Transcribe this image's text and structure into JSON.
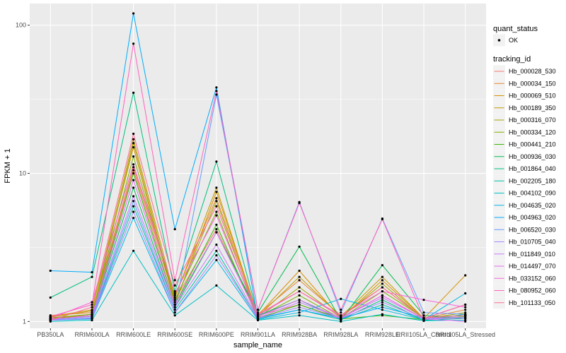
{
  "chart_data": {
    "type": "line",
    "xlabel": "sample_name",
    "ylabel": "FPKM + 1",
    "y_scale": "log10",
    "ylim": [
      0.9,
      140
    ],
    "y_ticks": [
      1,
      10,
      100
    ],
    "y_tick_labels": [
      "1",
      "10",
      "100"
    ],
    "grid": true,
    "legend_position": "right",
    "categories": [
      "PB350LA",
      "RRIM600LA",
      "RRIM600LE",
      "RRIM600SE",
      "RRIM600PE",
      "RRIM901LA",
      "RRIM928BA",
      "RRIM928LA",
      "RRIM928LE",
      "RRII105LA_Control",
      "RRII105LA_Stressed"
    ],
    "quant_legend": {
      "title": "quant_status",
      "entries": [
        "OK"
      ]
    },
    "series_legend_title": "tracking_id",
    "series": [
      {
        "name": "Hb_000028_530",
        "color": "#F8766D",
        "values": [
          1.05,
          1.12,
          10.5,
          1.4,
          4.2,
          1.1,
          1.3,
          1.05,
          1.5,
          1.05,
          1.1
        ]
      },
      {
        "name": "Hb_000034_150",
        "color": "#EA8331",
        "values": [
          1.1,
          1.15,
          11.0,
          1.5,
          6.8,
          1.12,
          1.9,
          1.1,
          1.7,
          1.05,
          1.2
        ]
      },
      {
        "name": "Hb_000069_510",
        "color": "#D89000",
        "values": [
          1.08,
          1.2,
          15.0,
          1.3,
          7.5,
          1.1,
          2.2,
          1.05,
          1.9,
          1.05,
          2.05
        ]
      },
      {
        "name": "Hb_000189_350",
        "color": "#C09B00",
        "values": [
          1.07,
          1.18,
          17.0,
          1.45,
          8.0,
          1.08,
          2.0,
          1.08,
          2.0,
          1.05,
          1.3
        ]
      },
      {
        "name": "Hb_000316_070",
        "color": "#A3A500",
        "values": [
          1.05,
          1.1,
          16.0,
          1.35,
          6.5,
          1.06,
          1.7,
          1.06,
          1.8,
          1.04,
          1.15
        ]
      },
      {
        "name": "Hb_000334_120",
        "color": "#7CAE00",
        "values": [
          1.06,
          1.12,
          13.0,
          1.4,
          5.5,
          1.07,
          1.5,
          1.05,
          1.6,
          1.06,
          1.1
        ]
      },
      {
        "name": "Hb_000441_210",
        "color": "#39B600",
        "values": [
          1.04,
          1.08,
          10.0,
          1.3,
          4.5,
          1.05,
          1.3,
          1.04,
          1.1,
          1.03,
          1.08
        ]
      },
      {
        "name": "Hb_000936_030",
        "color": "#00BB4E",
        "values": [
          1.03,
          1.1,
          8.0,
          1.25,
          4.0,
          1.15,
          3.2,
          1.02,
          2.4,
          1.1,
          1.05
        ]
      },
      {
        "name": "Hb_001864_040",
        "color": "#00BF7D",
        "values": [
          1.45,
          2.0,
          35.0,
          1.6,
          12.0,
          1.1,
          1.4,
          1.03,
          1.4,
          1.02,
          1.12
        ]
      },
      {
        "name": "Hb_002205_180",
        "color": "#00C1A3",
        "values": [
          1.02,
          1.05,
          6.0,
          1.2,
          3.0,
          1.04,
          1.2,
          1.03,
          1.3,
          1.02,
          1.05
        ]
      },
      {
        "name": "Hb_004102_090",
        "color": "#00BFC4",
        "values": [
          1.0,
          1.02,
          3.0,
          1.1,
          1.75,
          1.02,
          1.1,
          1.0,
          1.12,
          1.01,
          1.02
        ]
      },
      {
        "name": "Hb_004635_020",
        "color": "#00B8E5",
        "values": [
          1.02,
          1.04,
          5.0,
          1.15,
          2.6,
          1.03,
          1.15,
          1.42,
          1.2,
          1.03,
          1.55
        ]
      },
      {
        "name": "Hb_004963_020",
        "color": "#00ACFC",
        "values": [
          2.2,
          2.15,
          120.0,
          4.2,
          38.0,
          1.05,
          1.2,
          1.05,
          1.25,
          1.06,
          1.1
        ]
      },
      {
        "name": "Hb_006520_030",
        "color": "#619CFF",
        "values": [
          1.03,
          1.06,
          6.5,
          1.2,
          34.0,
          1.2,
          6.4,
          1.15,
          4.95,
          1.15,
          1.12
        ]
      },
      {
        "name": "Hb_010705_040",
        "color": "#A58AFF",
        "values": [
          1.02,
          1.05,
          5.5,
          1.15,
          2.8,
          1.05,
          1.25,
          1.05,
          1.35,
          1.04,
          1.05
        ]
      },
      {
        "name": "Hb_011849_010",
        "color": "#C77CFF",
        "values": [
          1.04,
          1.08,
          7.0,
          1.25,
          3.3,
          1.06,
          1.35,
          1.06,
          1.45,
          1.05,
          1.07
        ]
      },
      {
        "name": "Hb_014497_070",
        "color": "#E76BF3",
        "values": [
          1.03,
          1.1,
          9.0,
          1.3,
          4.0,
          1.08,
          1.4,
          1.06,
          1.5,
          1.04,
          1.0
        ]
      },
      {
        "name": "Hb_033152_060",
        "color": "#FA62DB",
        "values": [
          1.05,
          1.35,
          11.5,
          1.55,
          5.2,
          1.1,
          1.6,
          1.1,
          1.6,
          1.4,
          1.25
        ]
      },
      {
        "name": "Hb_080952_060",
        "color": "#FF62BC",
        "values": [
          1.08,
          1.3,
          75.0,
          1.9,
          36.0,
          1.2,
          6.3,
          1.2,
          4.9,
          1.05,
          1.3
        ]
      },
      {
        "name": "Hb_101133_050",
        "color": "#FF6C91",
        "values": [
          1.02,
          1.25,
          18.5,
          1.75,
          6.0,
          1.12,
          1.6,
          1.08,
          1.7,
          1.06,
          1.1
        ]
      }
    ]
  }
}
